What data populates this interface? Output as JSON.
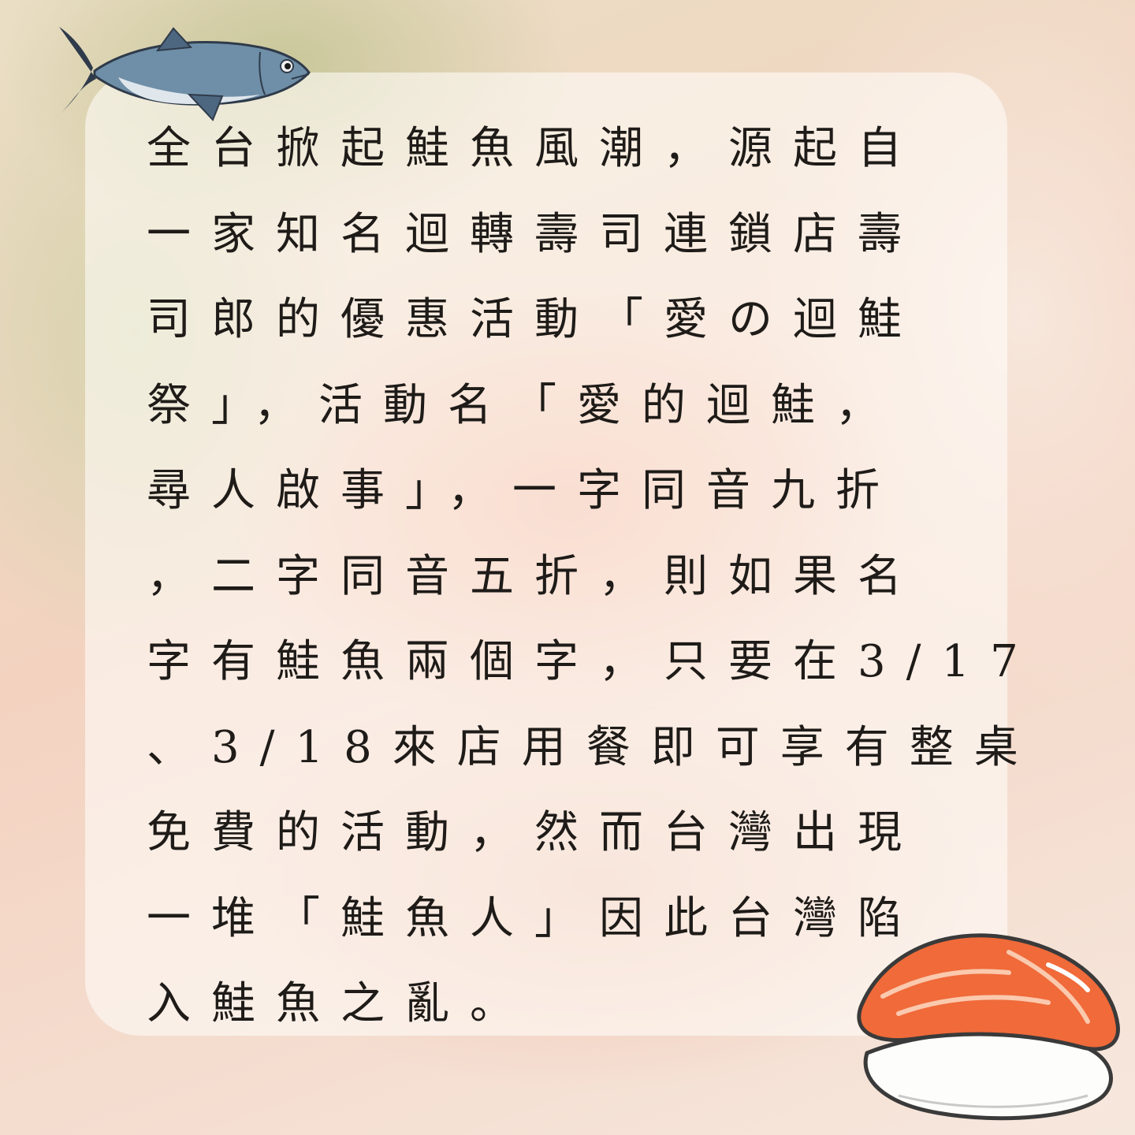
{
  "article": {
    "lines": [
      "全台掀起鮭魚風潮，源起自",
      "一家知名迴轉壽司連鎖店壽",
      "司郎的優惠活動「愛の迴鮭",
      "祭」，活動名「愛的迴鮭，",
      "尋人啟事」，一字同音九折",
      "，二字同音五折，則如果名",
      "字有鮭魚兩個字，只要在3/17",
      "、3/18來店用餐即可享有整桌",
      "免費的活動，然而台灣出現",
      "一堆「鮭魚人」因此台灣陷",
      "入鮭魚之亂。"
    ]
  },
  "decorations": {
    "top_left": "tuna-fish-illustration",
    "bottom_right": "salmon-nigiri-illustration"
  },
  "colors": {
    "text": "#1e1b18",
    "fish_body": "#6f8fa8",
    "salmon": "#f06a3a"
  }
}
